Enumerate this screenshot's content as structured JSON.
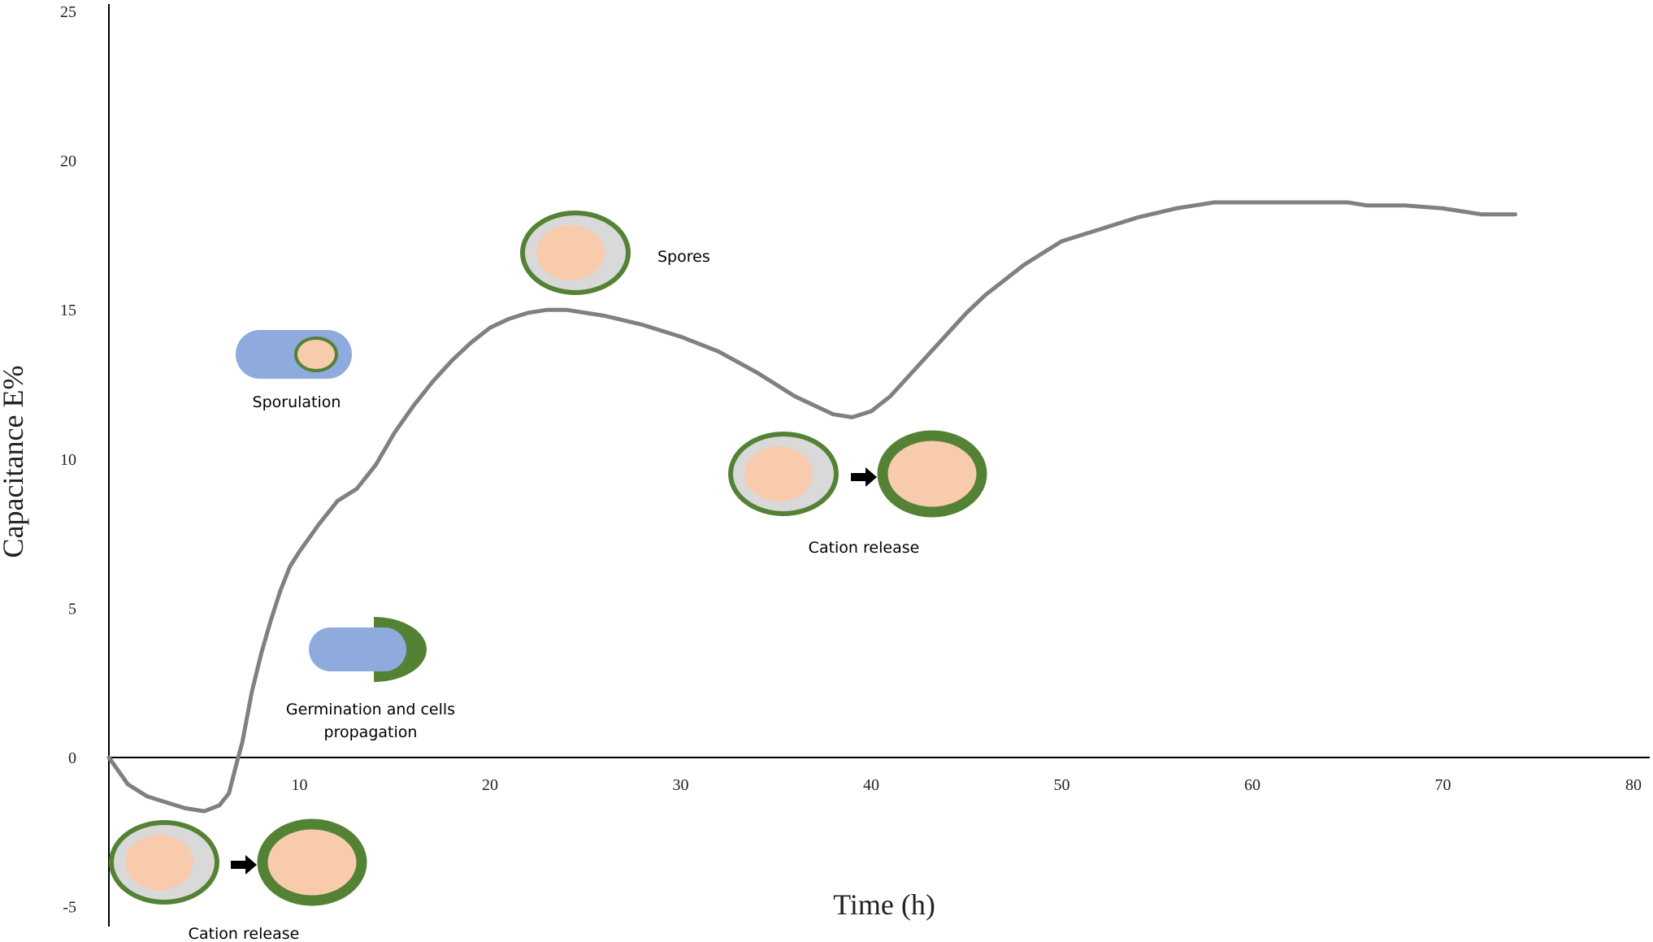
{
  "chart_data": {
    "type": "line",
    "title": "",
    "xlabel": "Time (h)",
    "ylabel": "Capacitance E%",
    "xlim": [
      0,
      80
    ],
    "ylim": [
      -5,
      25
    ],
    "x_ticks": [
      10,
      20,
      30,
      40,
      50,
      60,
      70,
      80
    ],
    "y_ticks": [
      -5,
      0,
      5,
      10,
      15,
      20,
      25
    ],
    "grid": false,
    "legend": "none",
    "series": [
      {
        "color": "#808080",
        "points": [
          [
            0,
            0
          ],
          [
            1,
            -0.9
          ],
          [
            2,
            -1.3
          ],
          [
            3,
            -1.5
          ],
          [
            4,
            -1.7
          ],
          [
            5,
            -1.8
          ],
          [
            5.8,
            -1.6
          ],
          [
            6.3,
            -1.2
          ],
          [
            6.7,
            -0.2
          ],
          [
            7,
            0.5
          ],
          [
            7.5,
            2.2
          ],
          [
            8,
            3.5
          ],
          [
            8.5,
            4.6
          ],
          [
            9,
            5.6
          ],
          [
            9.5,
            6.4
          ],
          [
            10,
            6.9
          ],
          [
            11,
            7.8
          ],
          [
            12,
            8.6
          ],
          [
            13,
            9.0
          ],
          [
            14,
            9.8
          ],
          [
            15,
            10.9
          ],
          [
            16,
            11.8
          ],
          [
            17,
            12.6
          ],
          [
            18,
            13.3
          ],
          [
            19,
            13.9
          ],
          [
            20,
            14.4
          ],
          [
            21,
            14.7
          ],
          [
            22,
            14.9
          ],
          [
            23,
            15.0
          ],
          [
            24,
            15.0
          ],
          [
            25,
            14.9
          ],
          [
            26,
            14.8
          ],
          [
            28,
            14.5
          ],
          [
            30,
            14.1
          ],
          [
            32,
            13.6
          ],
          [
            34,
            12.9
          ],
          [
            36,
            12.1
          ],
          [
            37,
            11.8
          ],
          [
            38,
            11.5
          ],
          [
            39,
            11.4
          ],
          [
            40,
            11.6
          ],
          [
            41,
            12.1
          ],
          [
            42,
            12.8
          ],
          [
            43,
            13.5
          ],
          [
            44,
            14.2
          ],
          [
            45,
            14.9
          ],
          [
            46,
            15.5
          ],
          [
            47,
            16.0
          ],
          [
            48,
            16.5
          ],
          [
            49,
            16.9
          ],
          [
            50,
            17.3
          ],
          [
            52,
            17.7
          ],
          [
            54,
            18.1
          ],
          [
            56,
            18.4
          ],
          [
            57,
            18.5
          ],
          [
            58,
            18.6
          ],
          [
            60,
            18.6
          ],
          [
            62,
            18.6
          ],
          [
            64,
            18.6
          ],
          [
            65,
            18.6
          ],
          [
            66,
            18.5
          ],
          [
            68,
            18.5
          ],
          [
            70,
            18.4
          ],
          [
            71,
            18.3
          ],
          [
            72,
            18.2
          ],
          [
            73,
            18.2
          ],
          [
            73.8,
            18.2
          ]
        ]
      }
    ],
    "annotations": [
      {
        "label": "Spores",
        "icon": "spore-icon"
      },
      {
        "label": "Sporulation",
        "icon": "sporulating-cell-icon"
      },
      {
        "label_line1": "Germination and cells",
        "label_line2": "propagation",
        "icon": "germinating-cell-icon"
      },
      {
        "label": "Cation release",
        "icon": "spore-to-cell-icon"
      },
      {
        "label": "Cation release",
        "icon": "spore-to-cell-icon"
      }
    ],
    "colors": {
      "curve": "#808080",
      "spore_coat": "#548235",
      "cortex": "#d9d9d9",
      "core": "#f8cbad",
      "vegetative_cell": "#8faadc"
    }
  }
}
